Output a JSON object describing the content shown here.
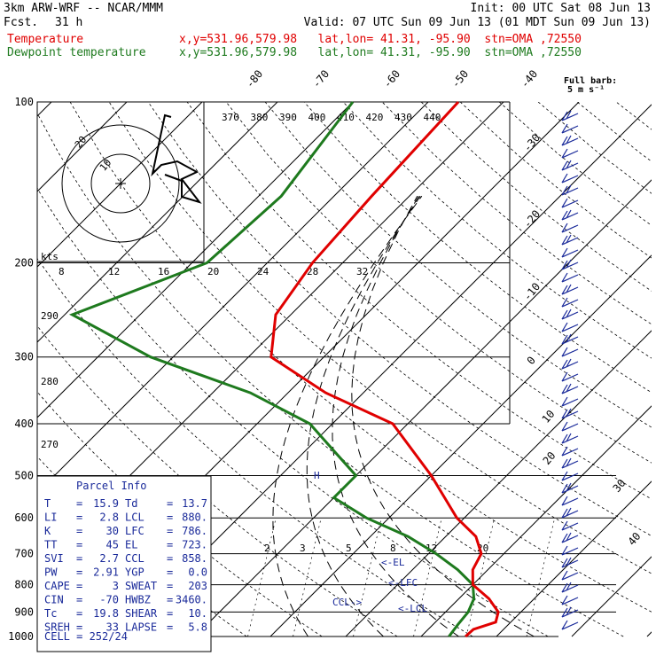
{
  "header": {
    "model": "3km ARW-WRF -- NCAR/MMM",
    "init": "Init: 00 UTC Sat 08 Jun 13",
    "fcst_label": "Fcst.",
    "fcst_value": "31 h",
    "valid": "Valid: 07 UTC Sun 09 Jun 13 (01 MDT Sun 09 Jun 13)",
    "temp_label": "Temperature",
    "dew_label": "Dewpoint temperature",
    "location": "x,y=531.96,579.98   lat,lon= 41.31, -95.90  stn=OMA ,72550",
    "temp_color": "#e00000",
    "dew_color": "#1e7a1e"
  },
  "barb_legend": {
    "line1": "Full barb:",
    "line2": "5 m s⁻¹"
  },
  "parcel_info": {
    "title": "Parcel Info",
    "rows": [
      [
        "T",
        "15.9",
        "Td",
        "13.7"
      ],
      [
        "LI",
        "2.8",
        "LCL",
        "880."
      ],
      [
        "K",
        "30",
        "LFC",
        "786."
      ],
      [
        "TT",
        "45",
        "EL",
        "723."
      ],
      [
        "SVI",
        "2.7",
        "CCL",
        "858."
      ],
      [
        "PW",
        "2.91",
        "YGP",
        "0.0"
      ],
      [
        "CAPE",
        "3",
        "SWEAT",
        "203"
      ],
      [
        "CIN",
        "-70",
        "HWBZ",
        "3460."
      ],
      [
        "Tc",
        "19.8",
        "SHEAR",
        "10."
      ],
      [
        "SREH",
        "33",
        "LAPSE",
        "5.8"
      ]
    ],
    "cell": "CELL = 252/24"
  },
  "level_marks": {
    "el": "<-EL",
    "lfc": "<-LFC",
    "lcl": "<-LCL",
    "ccl": "CCL->",
    "el_tick": "H"
  },
  "hodograph": {
    "units": "kts",
    "ring_labels": [
      "20",
      "10"
    ],
    "speed_ticks": [
      "8",
      "12",
      "16",
      "20",
      "24",
      "28",
      "32"
    ]
  },
  "chart_data": {
    "type": "line",
    "title": "",
    "pressure_levels": [
      100,
      200,
      300,
      400,
      500,
      600,
      700,
      800,
      900,
      1000
    ],
    "isotherm_labels": [
      "-80",
      "-70",
      "-60",
      "-50",
      "-40",
      "-30",
      "-20",
      "-10",
      "0",
      "10",
      "20",
      "30",
      "40"
    ],
    "theta_e_labels": [
      "370",
      "380",
      "390",
      "400",
      "410",
      "420",
      "430",
      "440"
    ],
    "theta_labels_left": [
      "290",
      "280",
      "270"
    ],
    "mixing_ratio_labels": [
      "2",
      "3",
      "5",
      "8",
      "12",
      "20"
    ],
    "series": [
      {
        "name": "Temperature",
        "color": "#e00000",
        "points": [
          [
            100,
            -56
          ],
          [
            150,
            -55
          ],
          [
            200,
            -54
          ],
          [
            250,
            -52
          ],
          [
            300,
            -47
          ],
          [
            350,
            -35
          ],
          [
            400,
            -22
          ],
          [
            500,
            -10
          ],
          [
            600,
            -1
          ],
          [
            650,
            4
          ],
          [
            700,
            7
          ],
          [
            750,
            8
          ],
          [
            800,
            10
          ],
          [
            850,
            14
          ],
          [
            900,
            17
          ],
          [
            940,
            18
          ],
          [
            970,
            16
          ],
          [
            1000,
            15.9
          ]
        ]
      },
      {
        "name": "Dewpoint temperature",
        "color": "#1e7a1e",
        "points": [
          [
            100,
            -70
          ],
          [
            150,
            -67
          ],
          [
            200,
            -68
          ],
          [
            250,
            -79
          ],
          [
            300,
            -63
          ],
          [
            350,
            -45
          ],
          [
            400,
            -33
          ],
          [
            500,
            -20
          ],
          [
            550,
            -20
          ],
          [
            600,
            -13
          ],
          [
            650,
            -5
          ],
          [
            700,
            1
          ],
          [
            750,
            6
          ],
          [
            800,
            10
          ],
          [
            850,
            12
          ],
          [
            900,
            13
          ],
          [
            950,
            13.3
          ],
          [
            1000,
            13.7
          ]
        ]
      }
    ],
    "xlim": [
      -80,
      40
    ],
    "ylim": [
      100,
      1000
    ]
  }
}
